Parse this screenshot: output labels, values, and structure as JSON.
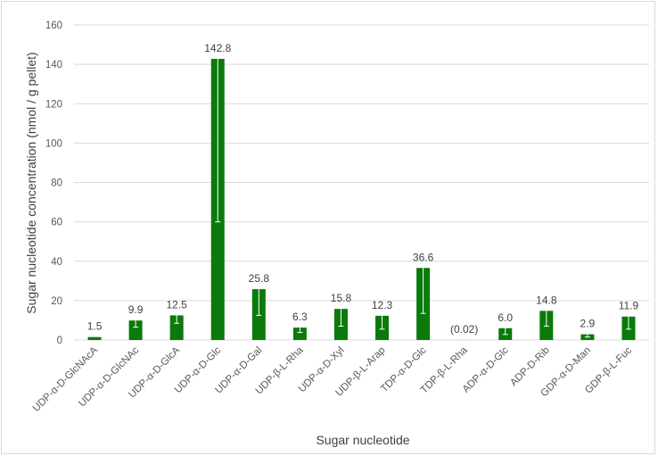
{
  "chart_data": {
    "type": "bar",
    "title": "",
    "xlabel": "Sugar nucleotide",
    "ylabel": "Sugar nucleotide concentration (nmol / g pellet)",
    "ylim": [
      0,
      160
    ],
    "yticks": [
      0,
      20,
      40,
      60,
      80,
      100,
      120,
      140,
      160
    ],
    "grid": true,
    "legend": "none",
    "bar_color": "#0a7a0a",
    "error_bar_color": "#ffffff",
    "categories": [
      "UDP-α-D-GlcNAcA",
      "UDP-α-D-GlcNAc",
      "UDP-α-D-GlcA",
      "UDP-α-D-Glc",
      "UDP-α-D-Gal",
      "UDP-β-L-Rha",
      "UDP-α-D-Xyl",
      "UDP-β-L-Arap",
      "TDP-α-D-Glc",
      "TDP-β-L-Rha",
      "ADP-α-D-Glc",
      "ADP-D-Rib",
      "GDP-α-D-Man",
      "GDP-β-L-Fuc"
    ],
    "values": [
      1.5,
      9.9,
      12.5,
      142.8,
      25.8,
      6.3,
      15.8,
      12.3,
      36.6,
      0.02,
      6.0,
      14.8,
      2.9,
      11.9
    ],
    "data_labels": [
      "1.5",
      "9.9",
      "12.5",
      "142.8",
      "25.8",
      "6.3",
      "15.8",
      "12.3",
      "36.6",
      "(0.02)",
      "6.0",
      "14.8",
      "2.9",
      "11.9"
    ],
    "error_low": [
      1.5,
      6.5,
      8.5,
      60,
      12.5,
      3.8,
      7,
      5.5,
      13.5,
      0.02,
      2.8,
      7,
      1.5,
      5.5
    ],
    "error_high": [
      1.5,
      10.5,
      13.2,
      143,
      26.5,
      7.8,
      16.5,
      12.8,
      37,
      0.02,
      6.8,
      15.2,
      3.3,
      12.3
    ]
  }
}
